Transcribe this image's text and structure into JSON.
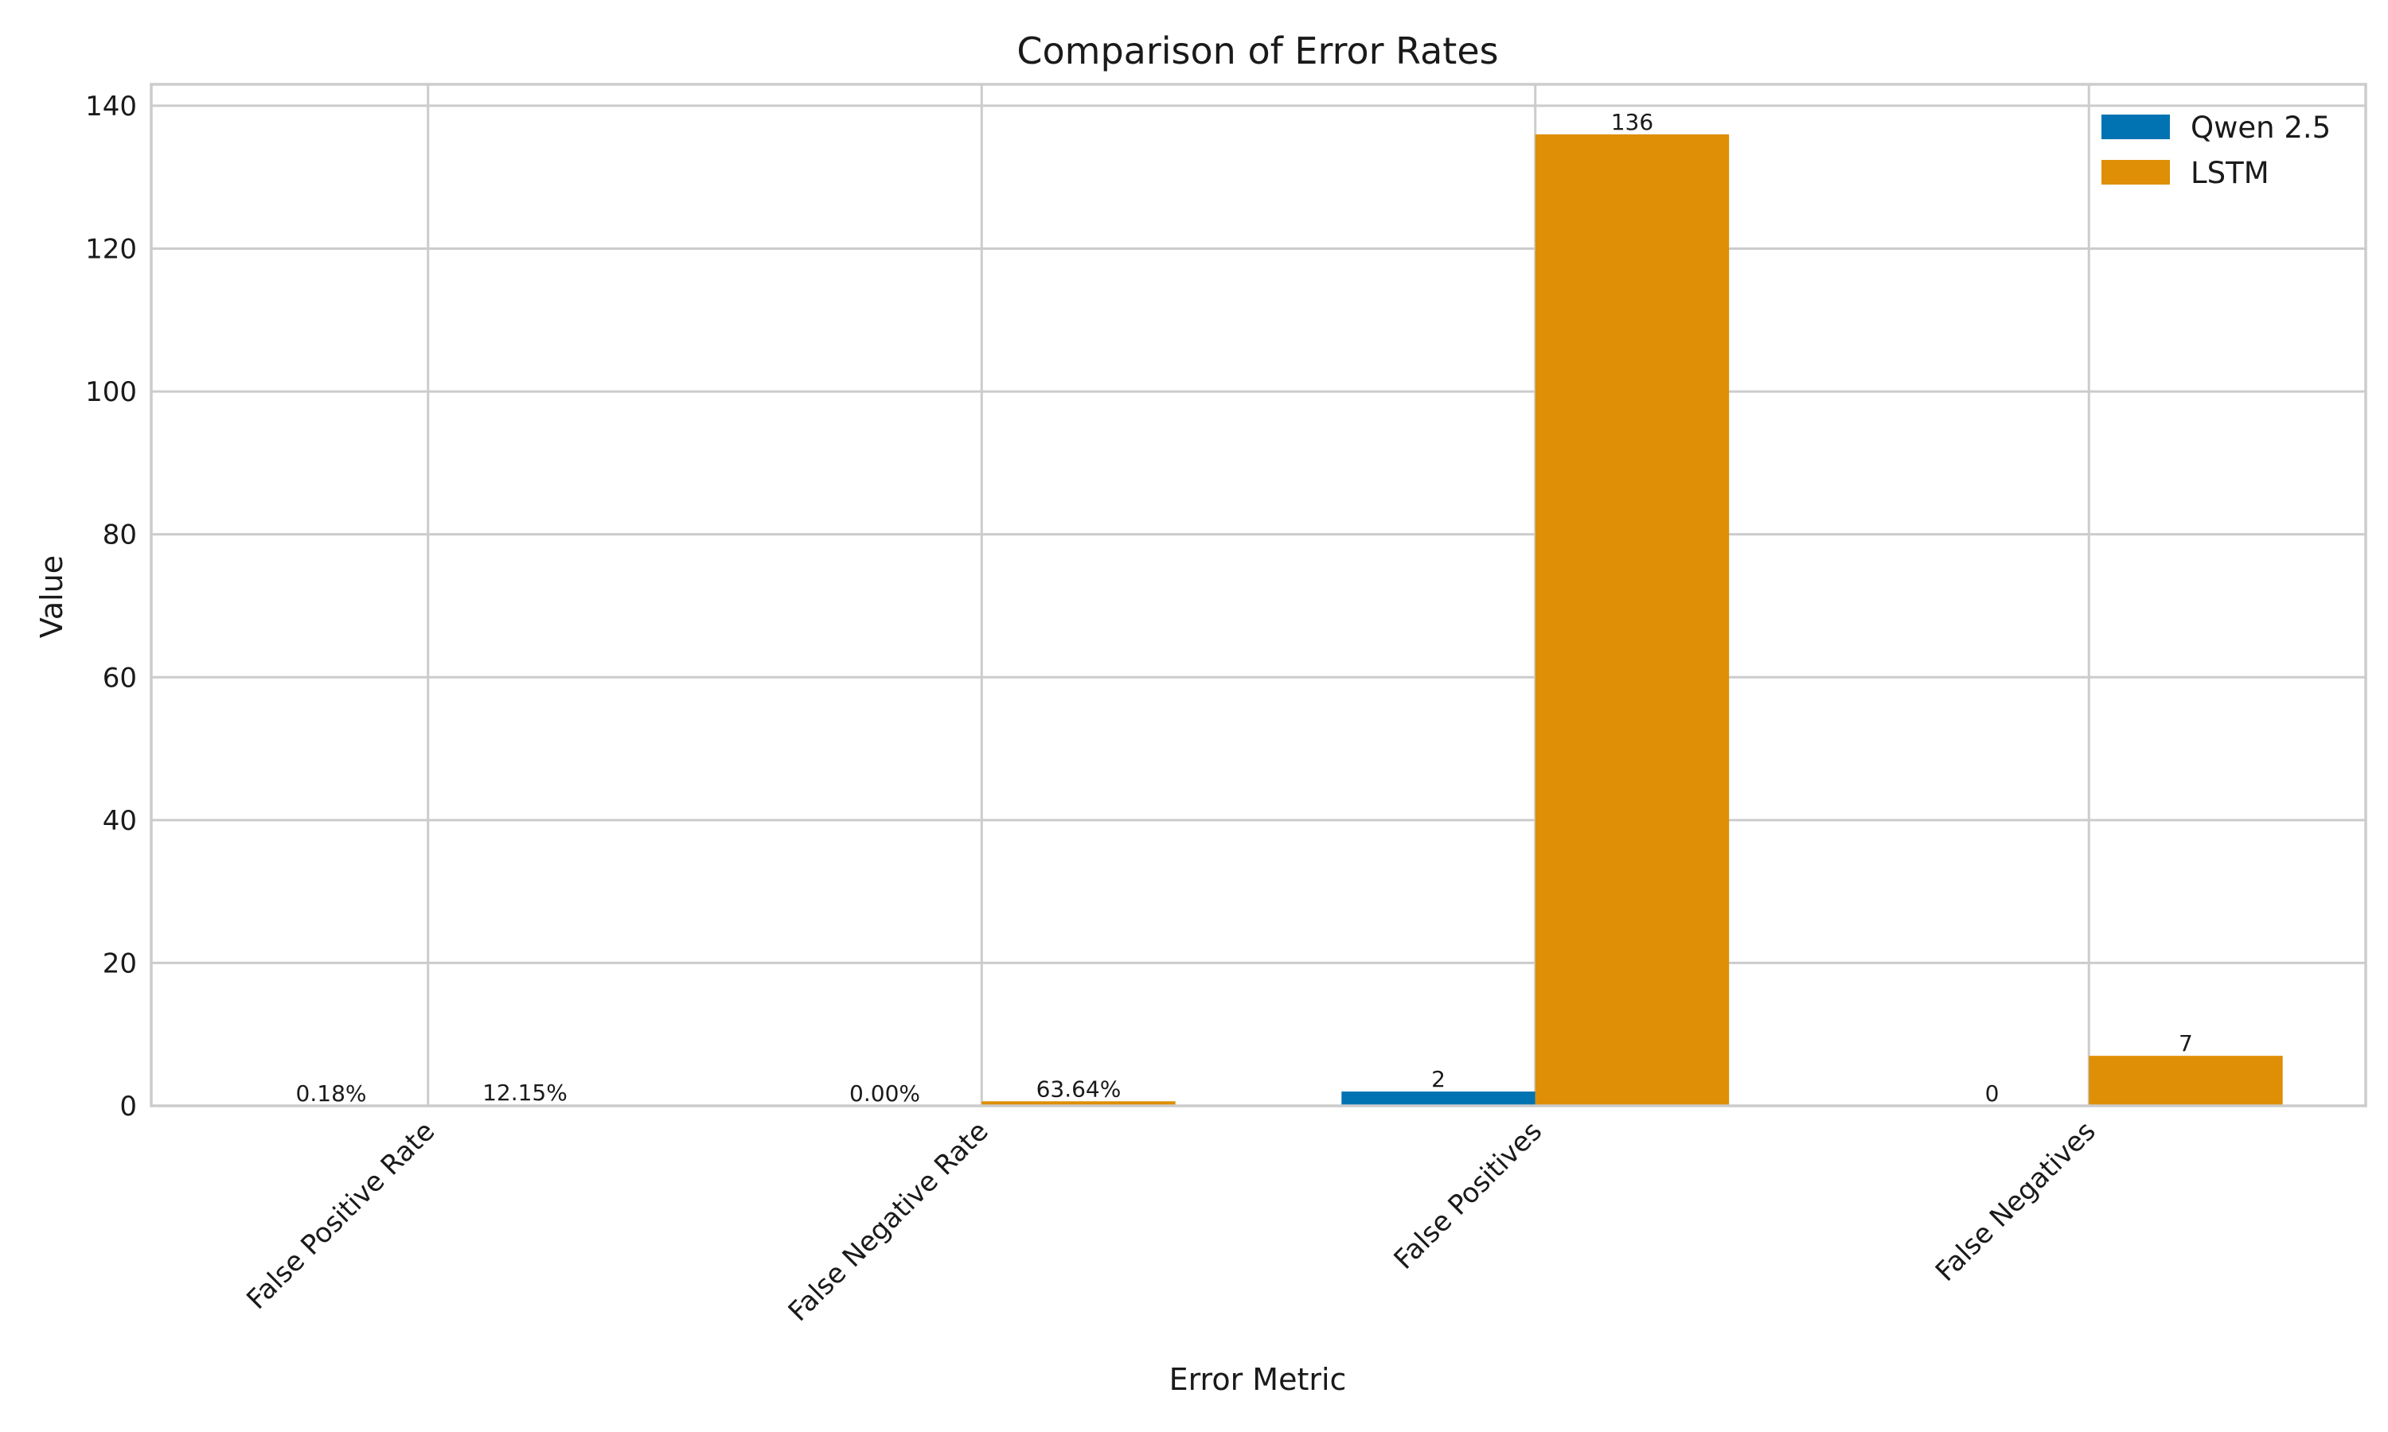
{
  "chart_data": {
    "type": "bar",
    "title": "Comparison of Error Rates",
    "xlabel": "Error Metric",
    "ylabel": "Value",
    "categories": [
      "False Positive Rate",
      "False Negative Rate",
      "False Positives",
      "False Negatives"
    ],
    "series": [
      {
        "name": "Qwen 2.5",
        "color": "#0173b2",
        "values": [
          0.0018,
          0.0,
          2,
          0
        ],
        "labels": [
          "0.18%",
          "0.00%",
          "2",
          "0"
        ]
      },
      {
        "name": "LSTM",
        "color": "#de8f05",
        "values": [
          0.1215,
          0.6364,
          136,
          7
        ],
        "labels": [
          "12.15%",
          "63.64%",
          "136",
          "7"
        ]
      }
    ],
    "ylim": [
      0,
      143
    ],
    "yticks": [
      0,
      20,
      40,
      60,
      80,
      100,
      120,
      140
    ],
    "grid": true,
    "legend_position": "top-right"
  }
}
